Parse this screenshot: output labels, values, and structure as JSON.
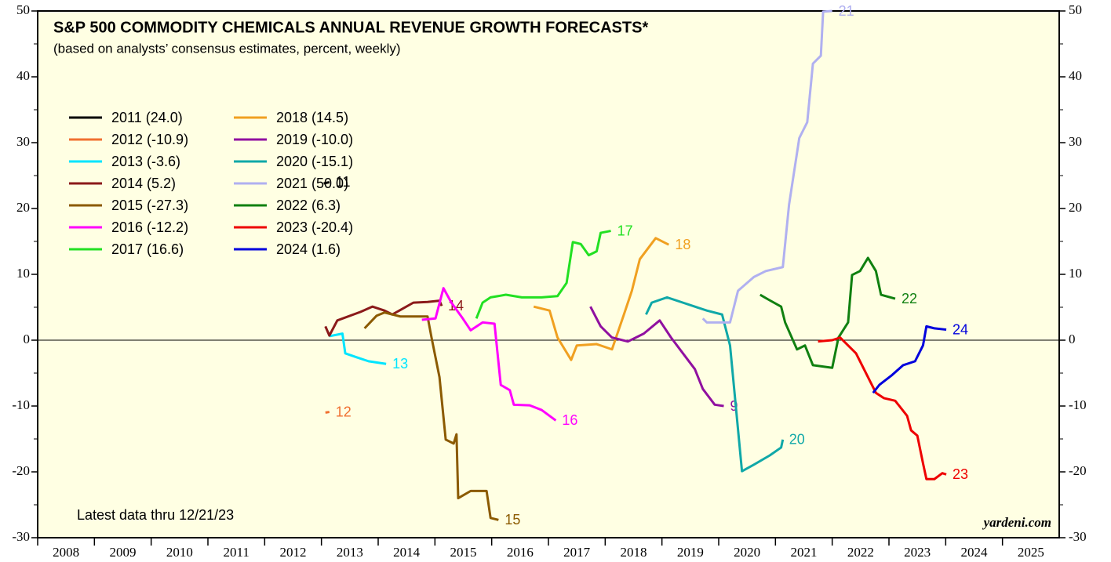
{
  "chart_data": {
    "type": "line",
    "title": "S&P 500 COMMODITY CHEMICALS ANNUAL REVENUE GROWTH FORECASTS*",
    "subtitle": "(based on analysts’ consensus estimates, percent, weekly)",
    "annotation": "Latest data thru 12/21/23",
    "source": "yardeni.com",
    "xlim": [
      2008,
      2026
    ],
    "xticks": [
      2008,
      2009,
      2010,
      2011,
      2012,
      2013,
      2014,
      2015,
      2016,
      2017,
      2018,
      2019,
      2020,
      2021,
      2022,
      2023,
      2024,
      2025
    ],
    "ylim": [
      -30,
      50
    ],
    "yticks": [
      -30,
      -20,
      -10,
      0,
      10,
      20,
      30,
      40,
      50
    ],
    "yminor_ticks": [
      -25,
      -15,
      -5,
      5,
      15,
      25,
      35,
      45
    ],
    "series": [
      {
        "name": "2011 (24.0)",
        "end_label": "11",
        "color": "#000000",
        "x": [
          2013.04,
          2013.14
        ],
        "values": [
          23.8,
          24.0
        ]
      },
      {
        "name": "2012 (-10.9)",
        "end_label": "12",
        "color": "#f07030",
        "x": [
          2013.07,
          2013.14
        ],
        "values": [
          -11.0,
          -10.9
        ]
      },
      {
        "name": "2013 (-3.6)",
        "end_label": "13",
        "color": "#00e5ff",
        "x": [
          2013.14,
          2013.37,
          2013.42,
          2013.62,
          2013.83,
          2014.14
        ],
        "values": [
          0.6,
          1.0,
          -2.0,
          -2.6,
          -3.2,
          -3.6
        ]
      },
      {
        "name": "2014 (5.2)",
        "end_label": "14",
        "color": "#8b1a1a",
        "x": [
          2013.07,
          2013.14,
          2013.28,
          2013.69,
          2013.9,
          2014.11,
          2014.25,
          2014.62,
          2014.87,
          2015.08,
          2015.12
        ],
        "values": [
          2.1,
          0.7,
          3.0,
          4.3,
          5.1,
          4.5,
          3.9,
          5.7,
          5.8,
          6.0,
          5.2
        ]
      },
      {
        "name": "2015 (-27.3)",
        "end_label": "15",
        "color": "#8b5a00",
        "x": [
          2013.76,
          2013.97,
          2014.11,
          2014.39,
          2014.87,
          2014.94,
          2015.08,
          2015.19,
          2015.33,
          2015.38,
          2015.41,
          2015.63,
          2015.91,
          2015.98,
          2016.12
        ],
        "values": [
          1.8,
          3.7,
          4.2,
          3.6,
          3.6,
          0.4,
          -5.6,
          -15.1,
          -15.7,
          -14.3,
          -24.0,
          -22.9,
          -22.9,
          -27.0,
          -27.3
        ]
      },
      {
        "name": "2016 (-12.2)",
        "end_label": "16",
        "color": "#ff00ff",
        "x": [
          2014.77,
          2015.01,
          2015.15,
          2015.29,
          2015.49,
          2015.63,
          2015.84,
          2016.05,
          2016.16,
          2016.32,
          2016.39,
          2016.67,
          2016.88,
          2017.13
        ],
        "values": [
          3.1,
          3.3,
          7.9,
          5.7,
          3.3,
          1.5,
          2.7,
          2.5,
          -6.8,
          -7.6,
          -9.8,
          -9.9,
          -10.6,
          -12.2
        ]
      },
      {
        "name": "2017 (16.6)",
        "end_label": "17",
        "color": "#22e022",
        "x": [
          2015.73,
          2015.84,
          2015.98,
          2016.25,
          2016.53,
          2016.88,
          2017.16,
          2017.32,
          2017.43,
          2017.57,
          2017.71,
          2017.85,
          2017.92,
          2018.1
        ],
        "values": [
          3.3,
          5.7,
          6.5,
          6.9,
          6.5,
          6.5,
          6.7,
          8.7,
          14.9,
          14.6,
          12.9,
          13.5,
          16.3,
          16.6
        ]
      },
      {
        "name": "2018 (14.5)",
        "end_label": "18",
        "color": "#f0a020",
        "x": [
          2016.74,
          2017.02,
          2017.16,
          2017.4,
          2017.5,
          2017.85,
          2018.12,
          2018.33,
          2018.47,
          2018.61,
          2018.89,
          2019.12
        ],
        "values": [
          5.1,
          4.5,
          0.4,
          -3.0,
          -0.8,
          -0.6,
          -1.4,
          3.9,
          7.5,
          12.3,
          15.5,
          14.5
        ]
      },
      {
        "name": "2019 (-10.0)",
        "end_label": "9",
        "color": "#9010a0",
        "x": [
          2017.74,
          2017.92,
          2018.12,
          2018.4,
          2018.68,
          2018.96,
          2019.16,
          2019.37,
          2019.58,
          2019.72,
          2019.93,
          2020.09
        ],
        "values": [
          5.1,
          2.1,
          0.4,
          -0.2,
          1.0,
          3.0,
          0.4,
          -2.0,
          -4.4,
          -7.4,
          -9.8,
          -10.0
        ]
      },
      {
        "name": "2020 (-15.1)",
        "end_label": "20",
        "color": "#10a8a8",
        "x": [
          2018.72,
          2018.82,
          2019.09,
          2019.37,
          2019.79,
          2020.06,
          2020.2,
          2020.41,
          2020.62,
          2020.9,
          2021.1,
          2021.13
        ],
        "values": [
          3.9,
          5.7,
          6.5,
          5.7,
          4.5,
          3.9,
          -0.8,
          -19.9,
          -18.9,
          -17.5,
          -16.3,
          -15.1
        ]
      },
      {
        "name": "2021 (50.0)",
        "end_label": "21",
        "color": "#b0b0f0",
        "x": [
          2019.72,
          2019.79,
          2020.2,
          2020.34,
          2020.62,
          2020.83,
          2021.13,
          2021.24,
          2021.42,
          2021.56,
          2021.66,
          2021.8,
          2021.84,
          2022.0
        ],
        "values": [
          3.3,
          2.7,
          2.7,
          7.5,
          9.6,
          10.5,
          11.1,
          20.6,
          30.7,
          33.1,
          42.0,
          43.2,
          49.9,
          50.0
        ]
      },
      {
        "name": "2022 (6.3)",
        "end_label": "22",
        "color": "#108010",
        "x": [
          2020.73,
          2020.89,
          2021.1,
          2021.17,
          2021.38,
          2021.52,
          2021.66,
          2022.0,
          2022.11,
          2022.28,
          2022.35,
          2022.49,
          2022.63,
          2022.77,
          2022.86,
          2023.11
        ],
        "values": [
          6.9,
          6.1,
          5.1,
          2.7,
          -1.4,
          -0.8,
          -3.8,
          -4.2,
          0.4,
          2.7,
          9.9,
          10.5,
          12.5,
          10.5,
          6.9,
          6.3
        ]
      },
      {
        "name": "2023 (-20.4)",
        "end_label": "23",
        "color": "#ee0000",
        "x": [
          2021.75,
          2022.0,
          2022.14,
          2022.42,
          2022.63,
          2022.77,
          2022.91,
          2023.11,
          2023.32,
          2023.39,
          2023.5,
          2023.6,
          2023.66,
          2023.8,
          2023.94,
          2024.01
        ],
        "values": [
          -0.2,
          0.0,
          0.4,
          -2.0,
          -5.6,
          -8.0,
          -8.8,
          -9.2,
          -11.5,
          -13.7,
          -14.5,
          -18.7,
          -21.1,
          -21.1,
          -20.2,
          -20.4
        ]
      },
      {
        "name": "2024 (1.6)",
        "end_label": "24",
        "color": "#0000dd",
        "x": [
          2022.72,
          2022.83,
          2023.04,
          2023.25,
          2023.46,
          2023.6,
          2023.66,
          2023.8,
          2024.01
        ],
        "values": [
          -8.0,
          -6.8,
          -5.4,
          -3.8,
          -3.2,
          -0.8,
          2.1,
          1.8,
          1.6
        ]
      }
    ]
  }
}
